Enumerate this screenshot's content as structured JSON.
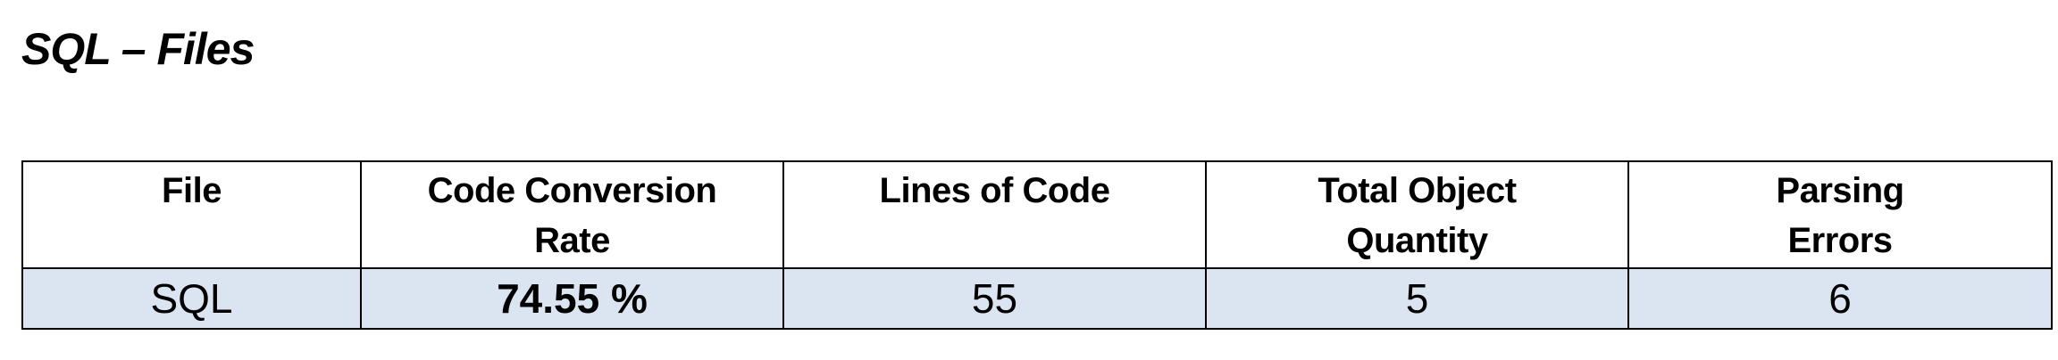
{
  "title": "SQL – Files",
  "table": {
    "headers": [
      "File",
      "Code Conversion Rate",
      "Lines of Code",
      "Total Object Quantity",
      "Parsing Errors"
    ],
    "rows": [
      [
        "SQL",
        "74.55 %",
        "55",
        "5",
        "6"
      ]
    ],
    "row_background": "#dbe5f1"
  }
}
